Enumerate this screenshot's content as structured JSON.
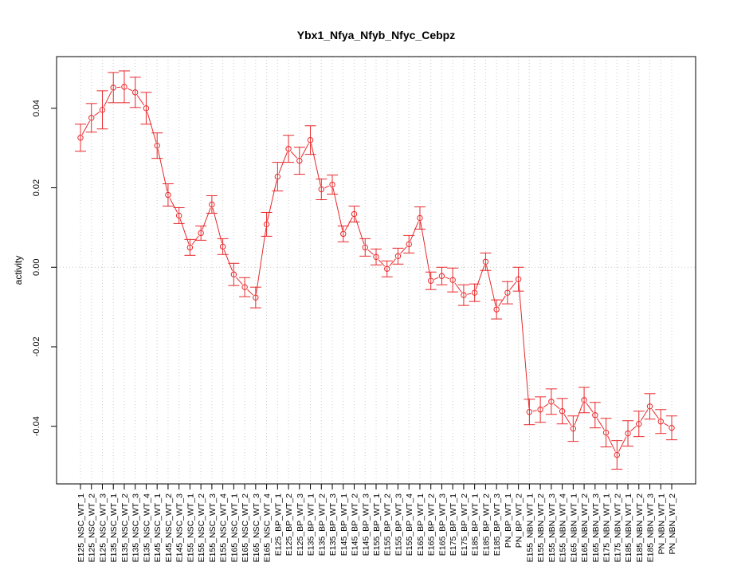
{
  "chart_data": {
    "type": "line",
    "title": "Ybx1_Nfya_Nfyb_Nfyc_Cebpz",
    "xlabel": "",
    "ylabel": "activity",
    "ylim": [
      -0.0545,
      0.053
    ],
    "yticks": [
      -0.04,
      -0.02,
      0.0,
      0.02,
      0.04
    ],
    "ytick_labels": [
      "-0.04",
      "-0.02",
      "0.00",
      "0.02",
      "0.04"
    ],
    "grid": true,
    "colors": {
      "series": "#e8282b",
      "grid": "#cccccc",
      "axis": "#000000"
    },
    "categories": [
      "E125_NSC_WT_1",
      "E125_NSC_WT_2",
      "E125_NSC_WT_3",
      "E135_NSC_WT_1",
      "E135_NSC_WT_2",
      "E135_NSC_WT_3",
      "E135_NSC_WT_4",
      "E145_NSC_WT_1",
      "E145_NSC_WT_2",
      "E145_NSC_WT_3",
      "E155_NSC_WT_1",
      "E155_NSC_WT_2",
      "E155_NSC_WT_3",
      "E155_NSC_WT_4",
      "E165_NSC_WT_1",
      "E165_NSC_WT_2",
      "E165_NSC_WT_3",
      "E165_NSC_WT_4",
      "E125_BP_WT_1",
      "E125_BP_WT_2",
      "E125_BP_WT_3",
      "E135_BP_WT_1",
      "E135_BP_WT_2",
      "E135_BP_WT_3",
      "E145_BP_WT_1",
      "E145_BP_WT_2",
      "E145_BP_WT_3",
      "E155_BP_WT_1",
      "E155_BP_WT_2",
      "E155_BP_WT_3",
      "E155_BP_WT_4",
      "E165_BP_WT_1",
      "E165_BP_WT_2",
      "E165_BP_WT_3",
      "E175_BP_WT_1",
      "E175_BP_WT_2",
      "E185_BP_WT_1",
      "E185_BP_WT_2",
      "E185_BP_WT_3",
      "PN_BP_WT_1",
      "PN_BP_WT_2",
      "E155_NBN_WT_1",
      "E155_NBN_WT_2",
      "E155_NBN_WT_3",
      "E155_NBN_WT_4",
      "E165_NBN_WT_1",
      "E165_NBN_WT_2",
      "E165_NBN_WT_3",
      "E175_NBN_WT_1",
      "E175_NBN_WT_2",
      "E185_NBN_WT_1",
      "E185_NBN_WT_2",
      "E185_NBN_WT_3",
      "PN_NBN_WT_1",
      "PN_NBN_WT_2"
    ],
    "series": [
      {
        "values": [
          0.0326,
          0.0376,
          0.0396,
          0.0452,
          0.0454,
          0.044,
          0.04,
          0.0306,
          0.0182,
          0.013,
          0.005,
          0.0086,
          0.0158,
          0.0052,
          -0.0018,
          -0.005,
          -0.0076,
          0.0108,
          0.0228,
          0.0298,
          0.0268,
          0.032,
          0.0196,
          0.0208,
          0.0084,
          0.0134,
          0.005,
          0.0026,
          -0.0004,
          0.0028,
          0.0058,
          0.0124,
          -0.0034,
          -0.0022,
          -0.0032,
          -0.007,
          -0.0064,
          0.0014,
          -0.0106,
          -0.0064,
          -0.003,
          -0.0364,
          -0.0358,
          -0.0338,
          -0.0362,
          -0.0406,
          -0.0334,
          -0.0372,
          -0.0416,
          -0.0472,
          -0.0418,
          -0.0394,
          -0.035,
          -0.0388,
          -0.0404
        ],
        "errors": [
          0.0034,
          0.0036,
          0.0048,
          0.0038,
          0.004,
          0.0038,
          0.004,
          0.0032,
          0.0028,
          0.002,
          0.002,
          0.0018,
          0.0022,
          0.002,
          0.0028,
          0.0024,
          0.0026,
          0.003,
          0.0036,
          0.0034,
          0.0034,
          0.0036,
          0.0026,
          0.0024,
          0.002,
          0.002,
          0.0022,
          0.002,
          0.002,
          0.002,
          0.0022,
          0.0028,
          0.0022,
          0.0022,
          0.003,
          0.0026,
          0.0022,
          0.0022,
          0.0024,
          0.0028,
          0.003,
          0.0032,
          0.0032,
          0.0032,
          0.0032,
          0.0032,
          0.0032,
          0.0032,
          0.0036,
          0.0036,
          0.0032,
          0.0032,
          0.0032,
          0.003,
          0.003
        ]
      }
    ]
  }
}
